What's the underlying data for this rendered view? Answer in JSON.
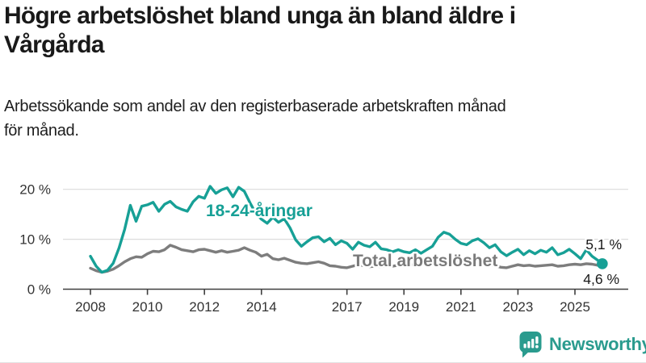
{
  "header": {
    "title_line1": "Högre arbetslöshet bland unga än bland äldre i",
    "title_line2": "Vårgårda",
    "subtitle_line1": "Arbetssökande som andel av den registerbaserade arbetskraften månad",
    "subtitle_line2": "för månad."
  },
  "footer": {
    "brand": "Newsworthy",
    "logo_icon": "bar-chart-speech-bubble-icon"
  },
  "colors": {
    "accent_teal": "#17a096",
    "series_gray": "#7d7d7d",
    "grid": "#dcdcdc",
    "axis": "#3f3f3f",
    "text_dark": "#191919",
    "logo_teal": "#2a9b8e"
  },
  "chart_data": {
    "type": "line",
    "title": "Högre arbetslöshet bland unga än bland äldre i Vårgårda",
    "subtitle": "Arbetssökande som andel av den registerbaserade arbetskraften månad för månad.",
    "unit": "%",
    "grid": true,
    "legend_position": "inline-labels",
    "x_axis": {
      "ticks": [
        2008,
        2010,
        2012,
        2014,
        2017,
        2019,
        2021,
        2023,
        2025
      ],
      "tick_labels": [
        "2008",
        "2010",
        "2012",
        "2014",
        "2017",
        "2019",
        "2021",
        "2023",
        "2025"
      ],
      "range": [
        2007.0,
        2026.9
      ]
    },
    "y_axis": {
      "ticks": [
        0,
        10,
        20
      ],
      "tick_labels": [
        "0 %",
        "10 %",
        "20 %"
      ],
      "range": [
        0,
        22
      ]
    },
    "x": [
      2008,
      2008.2,
      2008.4,
      2008.6,
      2008.8,
      2009,
      2009.2,
      2009.4,
      2009.6,
      2009.8,
      2010,
      2010.2,
      2010.4,
      2010.6,
      2010.8,
      2011,
      2011.2,
      2011.4,
      2011.6,
      2011.8,
      2012,
      2012.2,
      2012.4,
      2012.6,
      2012.8,
      2013,
      2013.2,
      2013.4,
      2013.6,
      2013.8,
      2014,
      2014.2,
      2014.4,
      2014.6,
      2014.8,
      2015,
      2015.2,
      2015.4,
      2015.6,
      2015.8,
      2016,
      2016.2,
      2016.4,
      2016.6,
      2016.8,
      2017,
      2017.2,
      2017.4,
      2017.6,
      2017.8,
      2018,
      2018.2,
      2018.4,
      2018.6,
      2018.8,
      2019,
      2019.2,
      2019.4,
      2019.6,
      2019.8,
      2020,
      2020.2,
      2020.4,
      2020.6,
      2020.8,
      2021,
      2021.2,
      2021.4,
      2021.6,
      2021.8,
      2022,
      2022.2,
      2022.4,
      2022.6,
      2022.8,
      2023,
      2023.2,
      2023.4,
      2023.6,
      2023.8,
      2024,
      2024.2,
      2024.4,
      2024.6,
      2024.8,
      2025,
      2025.2,
      2025.4,
      2025.6,
      2025.8,
      2025.96
    ],
    "series": [
      {
        "name": "18-24-åringar",
        "color": "#17a096",
        "end_label": "5,1 %",
        "end_value": 5.1,
        "end_dot": true,
        "values": [
          6.6,
          4.6,
          3.4,
          3.8,
          5.2,
          8.2,
          12.0,
          16.8,
          13.6,
          16.6,
          16.9,
          17.4,
          15.6,
          17.0,
          17.6,
          16.5,
          16.0,
          15.6,
          17.5,
          18.6,
          18.2,
          20.6,
          19.2,
          19.9,
          20.3,
          18.5,
          20.4,
          19.6,
          17.3,
          15.2,
          14.0,
          13.2,
          14.4,
          13.4,
          14.1,
          12.3,
          9.9,
          8.6,
          9.5,
          10.3,
          10.5,
          9.5,
          10.2,
          8.9,
          9.7,
          9.2,
          8.0,
          9.4,
          8.8,
          8.5,
          9.4,
          8.1,
          7.9,
          7.5,
          7.9,
          7.5,
          7.3,
          7.9,
          7.2,
          7.9,
          8.6,
          10.4,
          11.4,
          11.0,
          10.0,
          9.2,
          8.9,
          9.7,
          10.1,
          9.3,
          8.3,
          8.9,
          7.5,
          6.7,
          7.4,
          8.0,
          6.9,
          7.7,
          7.1,
          7.8,
          7.4,
          8.3,
          6.9,
          7.3,
          8.0,
          7.1,
          6.1,
          7.9,
          6.6,
          5.8,
          5.1
        ]
      },
      {
        "name": "Total arbetslöshet",
        "color": "#7d7d7d",
        "end_label": "4,6 %",
        "end_value": 4.6,
        "end_dot": false,
        "values": [
          4.2,
          3.7,
          3.4,
          3.6,
          4.0,
          4.7,
          5.5,
          6.1,
          6.5,
          6.4,
          7.1,
          7.6,
          7.5,
          7.9,
          8.8,
          8.4,
          7.9,
          7.7,
          7.5,
          7.9,
          8.0,
          7.7,
          7.4,
          7.7,
          7.4,
          7.6,
          7.8,
          8.3,
          7.8,
          7.4,
          6.6,
          7.0,
          6.1,
          5.9,
          6.2,
          5.8,
          5.4,
          5.2,
          5.1,
          5.3,
          5.5,
          5.2,
          4.7,
          4.6,
          4.4,
          4.3,
          4.6,
          4.9,
          4.7,
          4.5,
          4.6,
          4.5,
          4.7,
          4.6,
          4.8,
          4.9,
          4.8,
          5.0,
          4.9,
          5.1,
          5.4,
          5.8,
          6.0,
          6.1,
          5.8,
          5.6,
          5.4,
          5.2,
          5.1,
          5.0,
          4.9,
          4.7,
          4.4,
          4.3,
          4.6,
          4.9,
          4.7,
          4.8,
          4.6,
          4.7,
          4.8,
          4.9,
          4.6,
          4.7,
          4.9,
          5.0,
          4.9,
          5.1,
          5.0,
          4.8,
          4.6
        ]
      }
    ]
  }
}
